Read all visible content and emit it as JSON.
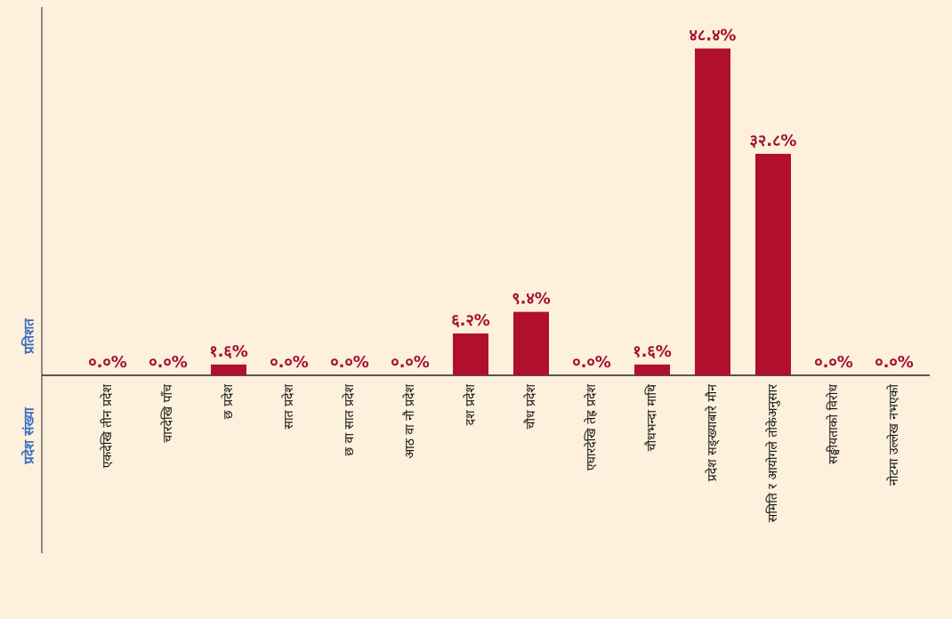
{
  "chart_data": {
    "type": "bar",
    "x_label": "प्रदेश संख्या",
    "y_label": "प्रतिशत",
    "categories": [
      "एकदेखि तीन प्रदेश",
      "चारदेखि पाँच",
      "छ प्रदेश",
      "सात प्रदेश",
      "छ वा सात प्रदेश",
      "आठ वा नौ प्रदेश",
      "दश प्रदेश",
      "चौध प्रदेश",
      "एघारदेखि तेह्र प्रदेश",
      "चौधभन्दा माथि",
      "प्रदेश सङ्ख्याबारे मौन",
      "समिति र आयोगले तोकेअनुसार",
      "सङ्घीयताको विरोध",
      "नोटमा उल्लेख नभएको"
    ],
    "values": [
      0,
      0,
      1.6,
      0,
      0,
      0,
      6.2,
      9.4,
      0,
      1.6,
      48.4,
      32.8,
      0,
      0
    ],
    "value_labels": [
      "०.०%",
      "०.०%",
      "१.६%",
      "०.०%",
      "०.०%",
      "०.०%",
      "६.२%",
      "९.४%",
      "०.०%",
      "१.६%",
      "४८.४%",
      "३२.८%",
      "०.०%",
      "०.०%"
    ],
    "color": "#b0102e",
    "ylim": [
      0,
      54
    ]
  }
}
